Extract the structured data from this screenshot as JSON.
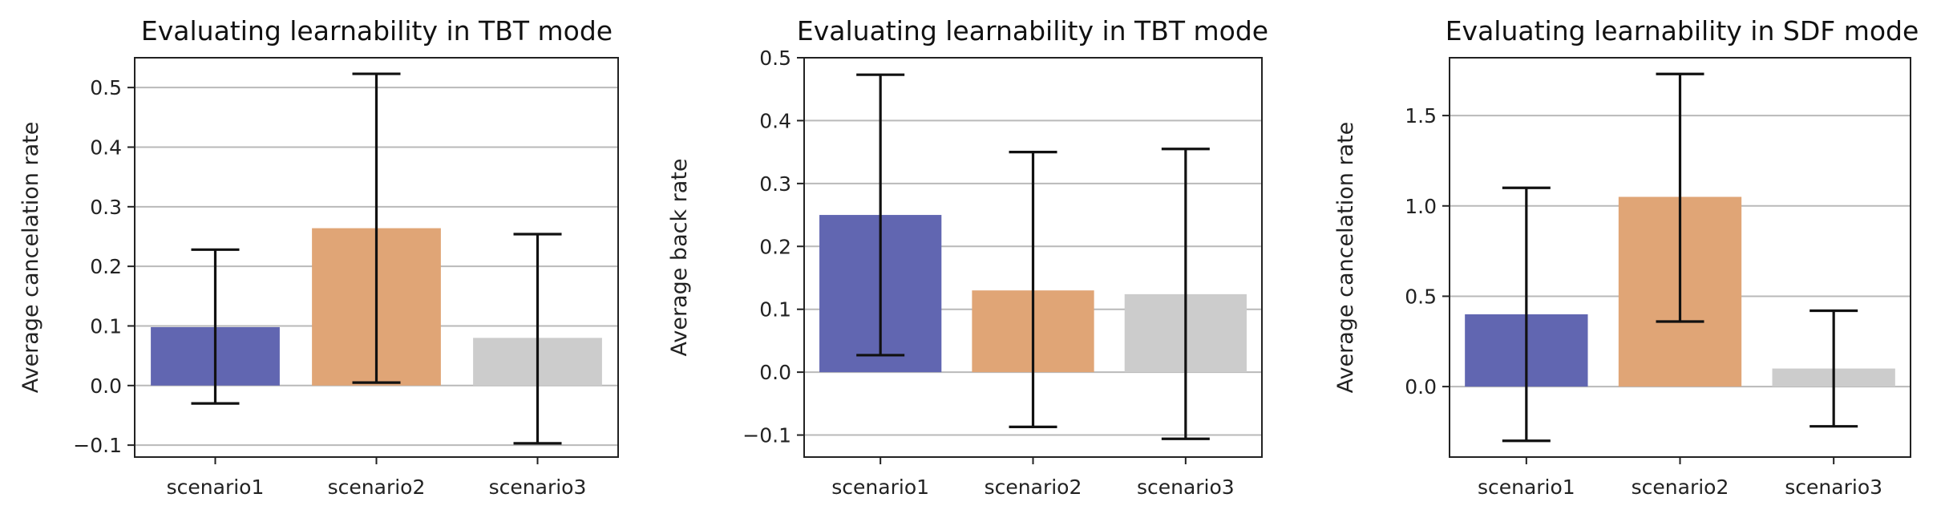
{
  "chart_data": [
    {
      "type": "bar",
      "title": "Evaluating learnability in TBT mode",
      "xlabel": "",
      "ylabel": "Average cancelation rate",
      "categories": [
        "scenario1",
        "scenario2",
        "scenario3"
      ],
      "values": [
        0.098,
        0.264,
        0.08
      ],
      "error_bars": [
        [
          -0.03,
          0.228
        ],
        [
          0.005,
          0.523
        ],
        [
          -0.097,
          0.254
        ]
      ],
      "colors": [
        "#6166b1",
        "#e0a576",
        "#cccccc"
      ],
      "ylim": [
        -0.12,
        0.55
      ],
      "yticks": [
        -0.1,
        0.0,
        0.1,
        0.2,
        0.3,
        0.4,
        0.5
      ],
      "ytick_labels": [
        "−0.1",
        "0.0",
        "0.1",
        "0.2",
        "0.3",
        "0.4",
        "0.5"
      ],
      "grid": "horizontal",
      "legend": "none"
    },
    {
      "type": "bar",
      "title": "Evaluating learnability in TBT mode",
      "xlabel": "",
      "ylabel": "Average back rate",
      "categories": [
        "scenario1",
        "scenario2",
        "scenario3"
      ],
      "values": [
        0.25,
        0.13,
        0.124
      ],
      "error_bars": [
        [
          0.027,
          0.473
        ],
        [
          -0.087,
          0.35
        ],
        [
          -0.106,
          0.355
        ]
      ],
      "colors": [
        "#6166b1",
        "#e0a576",
        "#cccccc"
      ],
      "ylim": [
        -0.135,
        0.5
      ],
      "yticks": [
        -0.1,
        0.0,
        0.1,
        0.2,
        0.3,
        0.4,
        0.5
      ],
      "ytick_labels": [
        "−0.1",
        "0.0",
        "0.1",
        "0.2",
        "0.3",
        "0.4",
        "0.5"
      ],
      "grid": "horizontal",
      "legend": "none"
    },
    {
      "type": "bar",
      "title": "Evaluating learnability in SDF mode",
      "xlabel": "",
      "ylabel": "Average cancelation rate",
      "categories": [
        "scenario1",
        "scenario2",
        "scenario3"
      ],
      "values": [
        0.4,
        1.05,
        0.1
      ],
      "error_bars": [
        [
          -0.3,
          1.1
        ],
        [
          0.36,
          1.73
        ],
        [
          -0.22,
          0.42
        ]
      ],
      "colors": [
        "#6166b1",
        "#e0a576",
        "#cccccc"
      ],
      "ylim": [
        -0.39,
        1.82
      ],
      "yticks": [
        0.0,
        0.5,
        1.0,
        1.5
      ],
      "ytick_labels": [
        "0.0",
        "0.5",
        "1.0",
        "1.5"
      ],
      "grid": "horizontal",
      "legend": "none"
    }
  ]
}
